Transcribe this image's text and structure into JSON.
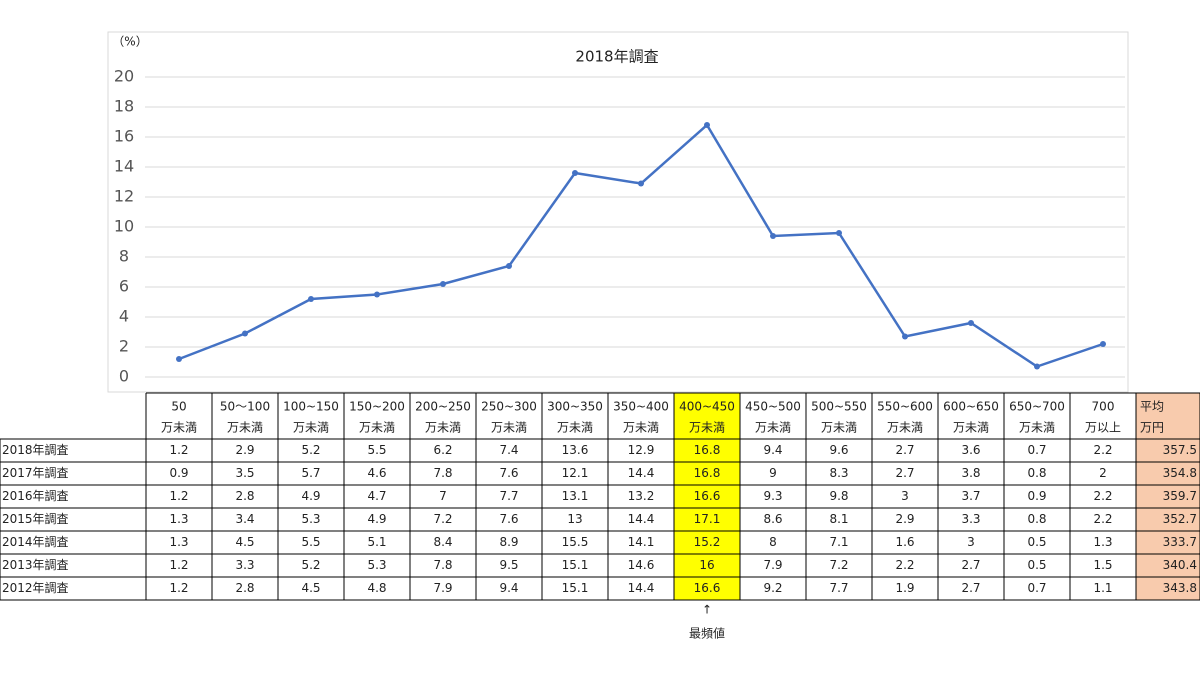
{
  "chart_data": {
    "type": "line",
    "title": "2018年調査",
    "y_unit": "（%）",
    "values": [
      1.2,
      2.9,
      5.2,
      5.5,
      6.2,
      7.4,
      13.6,
      12.9,
      16.8,
      9.4,
      9.6,
      2.7,
      3.6,
      0.7,
      2.2
    ],
    "color": "#4472c4",
    "ylim": [
      0,
      20
    ],
    "yticks": [
      0,
      2,
      4,
      6,
      8,
      10,
      12,
      14,
      16,
      18,
      20
    ],
    "grid": true
  },
  "table": {
    "headers": [
      [
        "50",
        "万未満"
      ],
      [
        "50～100",
        "万未満"
      ],
      [
        "100~150",
        "万未満"
      ],
      [
        "150~200",
        "万未満"
      ],
      [
        "200~250",
        "万未満"
      ],
      [
        "250~300",
        "万未満"
      ],
      [
        "300~350",
        "万未満"
      ],
      [
        "350~400",
        "万未満"
      ],
      [
        "400~450",
        "万未満"
      ],
      [
        "450~500",
        "万未満"
      ],
      [
        "500~550",
        "万未満"
      ],
      [
        "550~600",
        "万未満"
      ],
      [
        "600~650",
        "万未満"
      ],
      [
        "650~700",
        "万未満"
      ],
      [
        "700",
        "万以上"
      ]
    ],
    "average_header": [
      "平均",
      "万円"
    ],
    "rows": [
      {
        "label": "2017年調査",
        "values": [
          0.9,
          3.5,
          5.7,
          4.6,
          7.8,
          7.6,
          12.1,
          14.4,
          16.8,
          9,
          8.3,
          2.7,
          3.8,
          0.8,
          2
        ]
      },
      {
        "label": "2016年調査",
        "values": [
          1.2,
          2.8,
          4.9,
          4.7,
          7,
          7.7,
          13.1,
          13.2,
          16.6,
          9.3,
          9.8,
          3,
          3.7,
          0.9,
          2.2
        ]
      },
      {
        "label": "2015年調査",
        "values": [
          1.3,
          3.4,
          5.3,
          4.9,
          7.2,
          7.6,
          13,
          14.4,
          17.1,
          8.6,
          8.1,
          2.9,
          3.3,
          0.8,
          2.2
        ]
      },
      {
        "label": "2014年調査",
        "values": [
          1.3,
          4.5,
          5.5,
          5.1,
          8.4,
          8.9,
          15.5,
          14.1,
          15.2,
          8,
          7.1,
          1.6,
          3,
          0.5,
          1.3
        ]
      },
      {
        "label": "2013年調査",
        "values": [
          1.2,
          3.3,
          5.2,
          5.3,
          7.8,
          9.5,
          15.1,
          14.6,
          16,
          7.9,
          7.2,
          2.2,
          2.7,
          0.5,
          1.5
        ]
      },
      {
        "label": "2012年調査",
        "values": [
          1.2,
          2.8,
          4.5,
          4.8,
          7.9,
          9.4,
          15.1,
          14.4,
          16.6,
          9.2,
          7.7,
          1.9,
          2.7,
          0.7,
          1.1
        ]
      }
    ],
    "averages": [
      357.5,
      354.8,
      359.7,
      352.7,
      333.7,
      340.4,
      343.8
    ],
    "highlight_column": 8,
    "highlight_color": "#ffff00",
    "average_color": "#f8cbad",
    "arrow": "↑",
    "note": "最頻値"
  }
}
